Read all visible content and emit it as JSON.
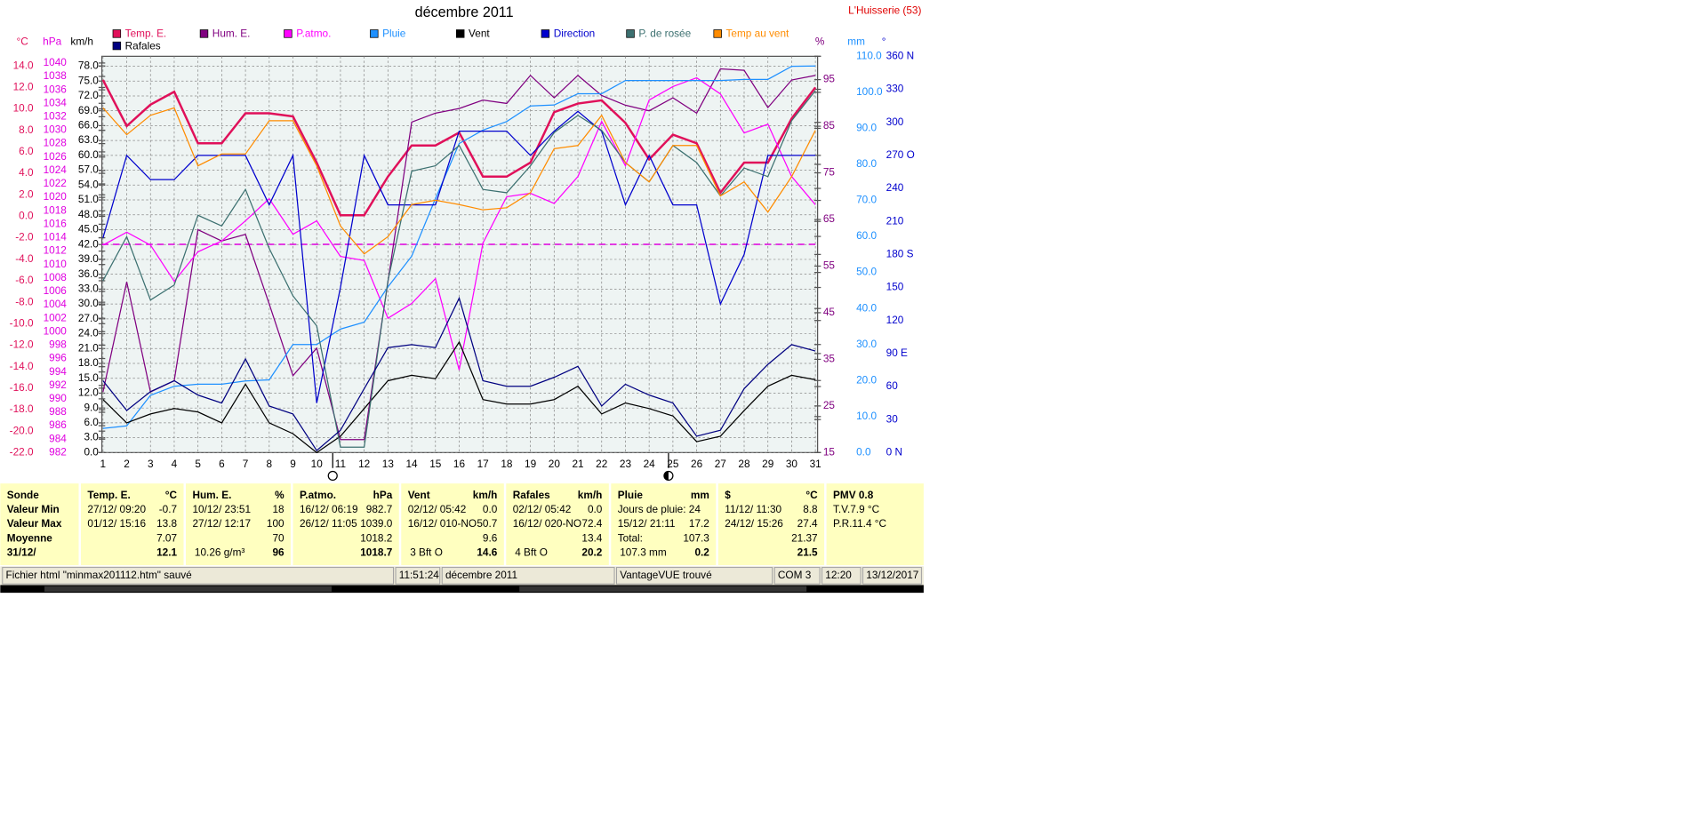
{
  "chart_data": {
    "type": "line",
    "title": "décembre 2011",
    "station": "L'Huisserie (53)",
    "categories": [
      1,
      2,
      3,
      4,
      5,
      6,
      7,
      8,
      9,
      10,
      11,
      12,
      13,
      14,
      15,
      16,
      17,
      18,
      19,
      20,
      21,
      22,
      23,
      24,
      25,
      26,
      27,
      28,
      29,
      30,
      31
    ],
    "grid": true,
    "y_axes": [
      {
        "label": "°C",
        "side": "left",
        "color": "#e0105a",
        "ylim": [
          -22,
          14.9
        ],
        "yticks": [
          {
            "value": -22,
            "label": "-22.0"
          },
          {
            "value": -20,
            "label": "-20.0"
          },
          {
            "value": -18,
            "label": "-18.0"
          },
          {
            "value": -16,
            "label": "-16.0"
          },
          {
            "value": -14,
            "label": "-14.0"
          },
          {
            "value": -12,
            "label": "-12.0"
          },
          {
            "value": -10,
            "label": "-10.0"
          },
          {
            "value": -8,
            "label": "-8.0"
          },
          {
            "value": -6,
            "label": "-6.0"
          },
          {
            "value": -4,
            "label": "-4.0"
          },
          {
            "value": -2,
            "label": "-2.0"
          },
          {
            "value": 0,
            "label": "0.0"
          },
          {
            "value": 2,
            "label": "2.0"
          },
          {
            "value": 4,
            "label": "4.0"
          },
          {
            "value": 6,
            "label": "6.0"
          },
          {
            "value": 8,
            "label": "8.0"
          },
          {
            "value": 10,
            "label": "10.0"
          },
          {
            "value": 12,
            "label": "12.0"
          },
          {
            "value": 14,
            "label": "14.0"
          }
        ]
      },
      {
        "label": "hPa",
        "side": "left",
        "color": "#e000e0",
        "ylim": [
          982,
          1041
        ],
        "yticks": [
          982,
          984,
          986,
          988,
          990,
          992,
          994,
          996,
          998,
          1000,
          1002,
          1004,
          1006,
          1008,
          1010,
          1012,
          1014,
          1016,
          1018,
          1020,
          1022,
          1024,
          1026,
          1028,
          1030,
          1032,
          1034,
          1036,
          1038,
          1040
        ]
      },
      {
        "label": "km/h",
        "side": "left",
        "color": "#000000",
        "ylim": [
          0,
          80
        ],
        "grid": true,
        "yticks": [
          {
            "value": 0,
            "label": "0.0"
          },
          {
            "value": 3,
            "label": "3.0"
          },
          {
            "value": 6,
            "label": "6.0"
          },
          {
            "value": 9,
            "label": "9.0"
          },
          {
            "value": 12,
            "label": "12.0"
          },
          {
            "value": 15,
            "label": "15.0"
          },
          {
            "value": 18,
            "label": "18.0"
          },
          {
            "value": 21,
            "label": "21.0"
          },
          {
            "value": 24,
            "label": "24.0"
          },
          {
            "value": 27,
            "label": "27.0"
          },
          {
            "value": 30,
            "label": "30.0"
          },
          {
            "value": 33,
            "label": "33.0"
          },
          {
            "value": 36,
            "label": "36.0"
          },
          {
            "value": 39,
            "label": "39.0"
          },
          {
            "value": 42,
            "label": "42.0"
          },
          {
            "value": 45,
            "label": "45.0"
          },
          {
            "value": 48,
            "label": "48.0"
          },
          {
            "value": 51,
            "label": "51.0"
          },
          {
            "value": 54,
            "label": "54.0"
          },
          {
            "value": 57,
            "label": "57.0"
          },
          {
            "value": 60,
            "label": "60.0"
          },
          {
            "value": 63,
            "label": "63.0"
          },
          {
            "value": 66,
            "label": "66.0"
          },
          {
            "value": 69,
            "label": "69.0"
          },
          {
            "value": 72,
            "label": "72.0"
          },
          {
            "value": 75,
            "label": "75.0"
          },
          {
            "value": 78,
            "label": "78.0"
          }
        ]
      },
      {
        "label": "%",
        "side": "right",
        "color": "#800080",
        "ylim": [
          15,
          100
        ],
        "yticks": [
          15,
          25,
          35,
          45,
          55,
          65,
          75,
          85,
          95
        ]
      },
      {
        "label": "mm",
        "side": "right",
        "color": "#1e90ff",
        "ylim": [
          0,
          110
        ],
        "yticks": [
          {
            "value": 0,
            "label": "0.0"
          },
          {
            "value": 10,
            "label": "10.0"
          },
          {
            "value": 20,
            "label": "20.0"
          },
          {
            "value": 30,
            "label": "30.0"
          },
          {
            "value": 40,
            "label": "40.0"
          },
          {
            "value": 50,
            "label": "50.0"
          },
          {
            "value": 60,
            "label": "60.0"
          },
          {
            "value": 70,
            "label": "70.0"
          },
          {
            "value": 80,
            "label": "80.0"
          },
          {
            "value": 90,
            "label": "90.0"
          },
          {
            "value": 100,
            "label": "100.0"
          },
          {
            "value": 110,
            "label": "110.0"
          }
        ]
      },
      {
        "label": "°",
        "side": "right",
        "color": "#0000cd",
        "ylim": [
          0,
          360
        ],
        "yticks": [
          {
            "value": 0,
            "label": "0  N"
          },
          30,
          60,
          {
            "value": 90,
            "label": "90  E"
          },
          120,
          150,
          {
            "value": 180,
            "label": "180 S"
          },
          210,
          240,
          {
            "value": 270,
            "label": "270 O"
          },
          300,
          330,
          {
            "value": 360,
            "label": "360 N"
          }
        ]
      }
    ],
    "reference_line": {
      "axis": 1,
      "value": 1013,
      "color": "#e000e0"
    },
    "series": [
      {
        "name": "Temp. E.",
        "color": "#e0105a",
        "axis": 0,
        "width": 2,
        "values": [
          12.7,
          8.4,
          10.4,
          11.6,
          6.8,
          6.8,
          9.6,
          9.6,
          9.3,
          5.0,
          0.1,
          0.1,
          3.7,
          6.6,
          6.6,
          7.8,
          3.7,
          3.7,
          5.0,
          9.7,
          10.5,
          10.8,
          8.7,
          5.3,
          7.6,
          6.8,
          2.2,
          5.0,
          5.0,
          9.1,
          12.0
        ]
      },
      {
        "name": "Hum. E.",
        "color": "#800080",
        "axis": 3,
        "width": 1,
        "values": [
          28.0,
          51.6,
          28.0,
          30.4,
          62.8,
          60.4,
          61.8,
          46.9,
          31.5,
          37.4,
          17.8,
          17.8,
          51.6,
          85.9,
          87.8,
          88.8,
          90.6,
          89.9,
          95.9,
          91.1,
          95.9,
          91.6,
          89.5,
          88.3,
          91.1,
          87.8,
          97.3,
          97.0,
          89.0,
          94.9,
          95.9
        ]
      },
      {
        "name": "P.atmo.",
        "color": "#ff00ff",
        "axis": 1,
        "width": 1,
        "values": [
          1012.9,
          1014.8,
          1012.9,
          1007.5,
          1011.9,
          1013.5,
          1016.5,
          1019.8,
          1014.5,
          1016.5,
          1011.2,
          1010.6,
          1002.0,
          1004.2,
          1007.9,
          994.3,
          1013.2,
          1020.1,
          1020.6,
          1019.1,
          1023.1,
          1031.3,
          1024.7,
          1034.5,
          1036.5,
          1037.8,
          1035.4,
          1029.6,
          1030.9,
          1023.1,
          1018.9
        ]
      },
      {
        "name": "Pluie",
        "color": "#1e90ff",
        "axis": 4,
        "width": 1,
        "values": [
          6.7,
          7.4,
          15.9,
          18.4,
          19.0,
          19.0,
          19.9,
          20.2,
          30.0,
          30.0,
          34.3,
          36.2,
          46.0,
          54.5,
          70.5,
          85.8,
          89.5,
          91.9,
          96.2,
          96.5,
          99.6,
          99.6,
          103.3,
          103.3,
          103.3,
          103.3,
          103.3,
          103.6,
          103.6,
          107.2,
          107.3
        ]
      },
      {
        "name": "Vent",
        "color": "#000000",
        "axis": 2,
        "width": 1,
        "values": [
          10.7,
          6.0,
          7.8,
          8.9,
          8.2,
          6.0,
          13.8,
          6.0,
          3.8,
          0.0,
          3.3,
          8.9,
          14.5,
          15.6,
          14.9,
          22.3,
          10.7,
          9.8,
          9.8,
          10.7,
          13.4,
          7.8,
          10.0,
          8.9,
          7.4,
          2.2,
          3.3,
          8.5,
          13.4,
          15.6,
          14.7
        ]
      },
      {
        "name": "Direction",
        "color": "#0000cd",
        "axis": 5,
        "width": 1,
        "values": [
          195,
          270,
          248,
          248,
          270,
          270,
          270,
          225,
          270,
          45,
          150,
          270,
          225,
          225,
          225,
          292,
          292,
          292,
          270,
          292,
          310,
          292,
          225,
          270,
          225,
          225,
          135,
          180,
          270,
          270,
          270
        ]
      },
      {
        "name": "P. de rosée",
        "color": "#3c7070",
        "axis": 0,
        "width": 1,
        "values": [
          -6.0,
          -1.9,
          -7.8,
          -6.4,
          0.1,
          -0.9,
          2.5,
          -3.0,
          -7.4,
          -10.2,
          -21.5,
          -21.5,
          -6.0,
          4.2,
          4.7,
          6.6,
          2.5,
          2.2,
          4.7,
          7.8,
          9.4,
          8.0,
          5.0,
          3.2,
          6.6,
          5.0,
          1.9,
          4.5,
          3.7,
          8.9,
          11.7
        ]
      },
      {
        "name": "Temp au vent",
        "color": "#ff8c00",
        "axis": 0,
        "width": 1,
        "values": [
          10.1,
          7.6,
          9.4,
          10.1,
          4.7,
          5.8,
          5.8,
          8.9,
          8.9,
          4.7,
          -0.9,
          -3.5,
          -1.9,
          1.1,
          1.5,
          1.1,
          0.6,
          0.8,
          2.2,
          6.3,
          6.6,
          9.4,
          5.0,
          3.2,
          6.6,
          6.6,
          1.9,
          3.2,
          0.4,
          3.7,
          8.0
        ]
      },
      {
        "name": "Rafales",
        "color": "#000080",
        "axis": 2,
        "width": 1,
        "values": [
          14.5,
          8.5,
          12.3,
          14.5,
          11.6,
          10.0,
          18.9,
          9.4,
          7.8,
          0.4,
          4.5,
          12.9,
          21.2,
          21.8,
          21.2,
          31.2,
          14.5,
          13.4,
          13.4,
          15.2,
          17.4,
          9.4,
          13.8,
          11.6,
          10.0,
          3.3,
          4.5,
          12.9,
          17.8,
          21.8,
          20.5
        ]
      }
    ]
  },
  "table": {
    "columns": [
      {
        "header": "Sonde",
        "rows": [
          "Valeur Min",
          "Valeur Max",
          "Moyenne",
          "31/12/"
        ]
      },
      {
        "header": "Temp. E.",
        "unit": "°C",
        "rows": [
          [
            "27/12/  09:20",
            "-0.7"
          ],
          [
            "01/12/  15:16",
            "13.8"
          ],
          [
            null,
            "7.07"
          ],
          [
            null,
            "12.1"
          ]
        ]
      },
      {
        "header": "Hum. E.",
        "unit": "%",
        "rows": [
          [
            "10/12/  23:51",
            "18"
          ],
          [
            "27/12/  12:17",
            "100"
          ],
          [
            null,
            "70"
          ],
          [
            "10.26 g/m³",
            "96"
          ]
        ]
      },
      {
        "header": "P.atmo.",
        "unit": "hPa",
        "rows": [
          [
            "16/12/  06:19",
            "982.7"
          ],
          [
            "26/12/  11:05",
            "1039.0"
          ],
          [
            null,
            "1018.2"
          ],
          [
            null,
            "1018.7"
          ]
        ]
      },
      {
        "header": "Vent",
        "unit": "km/h",
        "rows": [
          [
            "02/12/  05:42",
            "0.0"
          ],
          [
            "16/12/  010-NO",
            "50.7"
          ],
          [
            null,
            "9.6"
          ],
          [
            "3 Bft O",
            "14.6"
          ]
        ]
      },
      {
        "header": "Rafales",
        "unit": "km/h",
        "rows": [
          [
            "02/12/  05:42",
            "0.0"
          ],
          [
            "16/12/  020-NO",
            "72.4"
          ],
          [
            null,
            "13.4"
          ],
          [
            "4 Bft O",
            "20.2"
          ]
        ]
      },
      {
        "header": "Pluie",
        "unit": "mm",
        "rows": [
          [
            "Jours de pluie: 24",
            null
          ],
          [
            "15/12/  21:11",
            "17.2"
          ],
          [
            "Total:",
            "107.3"
          ],
          [
            "107.3 mm",
            "0.2"
          ]
        ]
      },
      {
        "header": "$",
        "unit": "°C",
        "rows": [
          [
            "11/12/  11:30",
            "8.8"
          ],
          [
            "24/12/  15:26",
            "27.4"
          ],
          [
            null,
            "21.37"
          ],
          [
            null,
            "21.5"
          ]
        ]
      },
      {
        "header": "PMV 0.8",
        "rows": [
          "T.V.7.9 °C",
          "P.R.11.4 °C"
        ]
      }
    ]
  },
  "status_bar": [
    "Fichier html  \"minmax201112.htm\"  sauvé",
    "11:51:24",
    "décembre 2011",
    "VantageVUE trouvé",
    "COM 3",
    "12:20",
    "13/12/2017"
  ]
}
